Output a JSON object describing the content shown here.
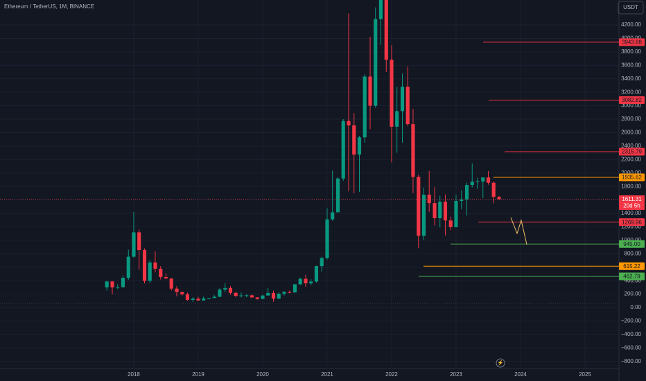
{
  "chart_data": {
    "type": "candlestick",
    "title": "Ethereum / TetherUS, 1M, BINANCE",
    "currency": "USDT",
    "up_color": "#089981",
    "down_color": "#f23645",
    "x": [
      2017.583,
      2017.667,
      2017.75,
      2017.833,
      2017.917,
      2018,
      2018.083,
      2018.167,
      2018.25,
      2018.333,
      2018.417,
      2018.5,
      2018.583,
      2018.667,
      2018.75,
      2018.833,
      2018.917,
      2019,
      2019.083,
      2019.167,
      2019.25,
      2019.333,
      2019.417,
      2019.5,
      2019.583,
      2019.667,
      2019.75,
      2019.833,
      2019.917,
      2020,
      2020.083,
      2020.167,
      2020.25,
      2020.333,
      2020.417,
      2020.5,
      2020.583,
      2020.667,
      2020.75,
      2020.833,
      2020.917,
      2021,
      2021.083,
      2021.167,
      2021.25,
      2021.333,
      2021.417,
      2021.5,
      2021.583,
      2021.667,
      2021.75,
      2021.833,
      2021.917,
      2022,
      2022.083,
      2022.167,
      2022.25,
      2022.333,
      2022.417,
      2022.5,
      2022.583,
      2022.667,
      2022.75,
      2022.833,
      2022.917,
      2023,
      2023.083,
      2023.167,
      2023.25,
      2023.333,
      2023.417,
      2023.5,
      2023.583,
      2023.667
    ],
    "open": [
      301,
      388,
      301,
      305,
      442,
      756,
      1118,
      854,
      396,
      670,
      577,
      454,
      433,
      281,
      232,
      198,
      113,
      133,
      106,
      136,
      141,
      161,
      268,
      290,
      218,
      172,
      180,
      182,
      151,
      129,
      179,
      217,
      133,
      206,
      231,
      225,
      346,
      428,
      360,
      386,
      616,
      737,
      1311,
      1416,
      1918,
      2773,
      2707,
      2274,
      2530,
      3433,
      3000,
      4288,
      4631,
      3683,
      2688,
      2919,
      3282,
      2726,
      1942,
      1067,
      1678,
      1553,
      1328,
      1572,
      1295,
      1196,
      1585,
      1605,
      1822,
      1869,
      1874,
      1934,
      1856,
      1645
    ],
    "high": [
      393,
      394,
      347,
      480,
      860,
      1421,
      1160,
      879,
      708,
      836,
      617,
      510,
      434,
      319,
      236,
      222,
      157,
      161,
      165,
      144,
      184,
      288,
      364,
      318,
      238,
      224,
      198,
      196,
      155,
      189,
      288,
      253,
      227,
      247,
      251,
      349,
      445,
      488,
      420,
      623,
      755,
      1475,
      2036,
      1943,
      2800,
      4372,
      2891,
      2551,
      3468,
      4027,
      4460,
      4868,
      4778,
      3900,
      3282,
      3478,
      3581,
      2954,
      1973,
      1785,
      2030,
      1789,
      1663,
      1680,
      1352,
      1680,
      1743,
      1857,
      2142,
      1929,
      1930,
      2029,
      1874,
      1659
    ],
    "low": [
      250,
      197,
      276,
      292,
      410,
      740,
      560,
      360,
      367,
      525,
      417,
      426,
      251,
      167,
      178,
      101,
      81,
      100,
      102,
      123,
      139,
      156,
      229,
      191,
      159,
      151,
      153,
      137,
      116,
      126,
      177,
      86,
      128,
      178,
      214,
      220,
      336,
      308,
      334,
      373,
      531,
      714,
      1290,
      1419,
      1882,
      1728,
      1700,
      1718,
      2451,
      2650,
      2969,
      3906,
      3500,
      2159,
      2300,
      2450,
      2700,
      1700,
      881,
      1000,
      1422,
      1220,
      1190,
      1073,
      1150,
      1190,
      1461,
      1368,
      1785,
      1762,
      1626,
      1826,
      1550,
      1598
    ],
    "close": [
      388,
      301,
      305,
      442,
      756,
      1118,
      854,
      396,
      670,
      577,
      454,
      433,
      281,
      232,
      198,
      113,
      133,
      106,
      136,
      141,
      161,
      268,
      290,
      218,
      172,
      180,
      182,
      151,
      129,
      179,
      217,
      133,
      206,
      231,
      225,
      346,
      428,
      360,
      386,
      616,
      737,
      1311,
      1416,
      1918,
      2773,
      2707,
      2274,
      2530,
      3433,
      3000,
      4288,
      4631,
      3683,
      2688,
      2919,
      3282,
      2726,
      1942,
      1067,
      1678,
      1553,
      1328,
      1572,
      1295,
      1196,
      1585,
      1605,
      1822,
      1869,
      1874,
      1934,
      1856,
      1645,
      1611.31
    ],
    "countdown": "20d 5h",
    "xlim": [
      2015.925,
      2025.527
    ],
    "xticks": [
      2018,
      2019,
      2020,
      2021,
      2022,
      2023,
      2024,
      2025
    ],
    "ylim": [
      -906,
      4571
    ],
    "yticks": [
      {
        "value": 4200,
        "label": "4200.00"
      },
      {
        "value": 4000,
        "label": "4000.00"
      },
      {
        "value": 3800,
        "label": "3800.00"
      },
      {
        "value": 3600,
        "label": "3600.00"
      },
      {
        "value": 3400,
        "label": "3400.00"
      },
      {
        "value": 3200,
        "label": "3200.00"
      },
      {
        "value": 3000,
        "label": "3000.00"
      },
      {
        "value": 2800,
        "label": "2800.00"
      },
      {
        "value": 2600,
        "label": "2600.00"
      },
      {
        "value": 2400,
        "label": "2400.00"
      },
      {
        "value": 2200,
        "label": "2200.00"
      },
      {
        "value": 2000,
        "label": "2000.00"
      },
      {
        "value": 1800,
        "label": "1800.00"
      },
      {
        "value": 1600,
        "label": "1600.00"
      },
      {
        "value": 1400,
        "label": "1400.00"
      },
      {
        "value": 1200,
        "label": "1200.00"
      },
      {
        "value": 1000,
        "label": "1000.00"
      },
      {
        "value": 800,
        "label": "800.00"
      },
      {
        "value": 600,
        "label": "600.00"
      },
      {
        "value": 400,
        "label": "400.00"
      },
      {
        "value": 200,
        "label": "200.00"
      },
      {
        "value": 0,
        "label": "0.00"
      },
      {
        "value": -200,
        "label": "−200.00"
      },
      {
        "value": -400,
        "label": "−400.00"
      },
      {
        "value": -600,
        "label": "−600.00"
      },
      {
        "value": -800,
        "label": "−800.00"
      }
    ],
    "levels": [
      {
        "value": 3943.88,
        "label": "3943.88",
        "color": "#f23645",
        "from": 2023.42
      },
      {
        "value": 3082.82,
        "label": "3082.82",
        "color": "#f23645",
        "from": 2023.505
      },
      {
        "value": 2315.79,
        "label": "2315.79",
        "color": "#f23645",
        "from": 2023.753
      },
      {
        "value": 1935.62,
        "label": "1935.62",
        "color": "#ff9800",
        "from": 2023.58
      },
      {
        "value": 1269.96,
        "label": "1269.96",
        "color": "#f23645",
        "from": 2023.344
      },
      {
        "value": 945,
        "label": "945.00",
        "color": "#4caf50",
        "from": 2022.914
      },
      {
        "value": 615.22,
        "label": "615.22",
        "color": "#ff9800",
        "from": 2022.495
      },
      {
        "value": 462.79,
        "label": "462.79",
        "color": "#4caf50",
        "from": 2022.419
      }
    ]
  }
}
